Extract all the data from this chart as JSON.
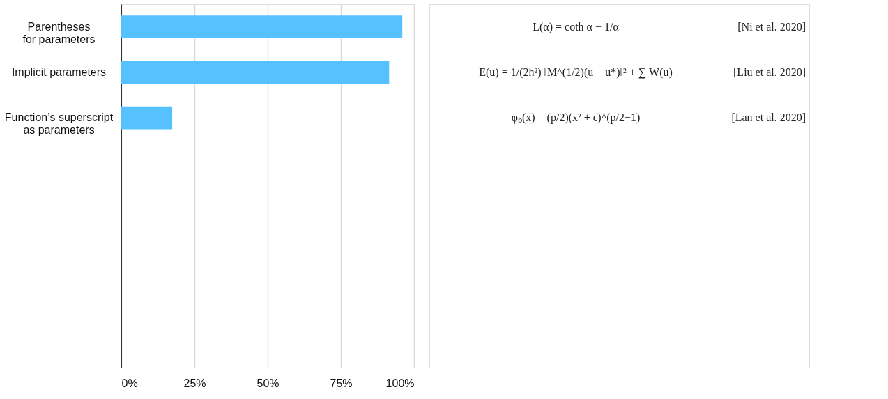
{
  "chart_data": {
    "type": "bar",
    "orientation": "horizontal",
    "categories": [
      "Parentheses\nfor parameters",
      "Implicit parameters",
      "Function’s superscript\nas parameters",
      null,
      null,
      null,
      null,
      null
    ],
    "values": [
      96.0,
      91.5,
      17.4,
      null,
      null,
      null,
      null,
      null
    ],
    "color": "#56c1ff",
    "xlim": [
      0,
      100
    ],
    "xticks": [
      {
        "value": 0,
        "label": "0%"
      },
      {
        "value": 25,
        "label": "25%"
      },
      {
        "value": 50,
        "label": "50%"
      },
      {
        "value": 75,
        "label": "75%"
      },
      {
        "value": 100,
        "label": "100%"
      }
    ],
    "grid": "x",
    "annotations": [
      "L(α) = coth α − 1/α",
      "[Ni et al. 2020]",
      "E(u) = 1/(2h²) ‖M^(1/2)(u − u*)‖² + ∑ W(u)",
      "[Liu et al. 2020]",
      "φₚ(x) = (p/2)(x² + ϵ)^(p/2−1)",
      "[Lan et al. 2020]"
    ]
  }
}
